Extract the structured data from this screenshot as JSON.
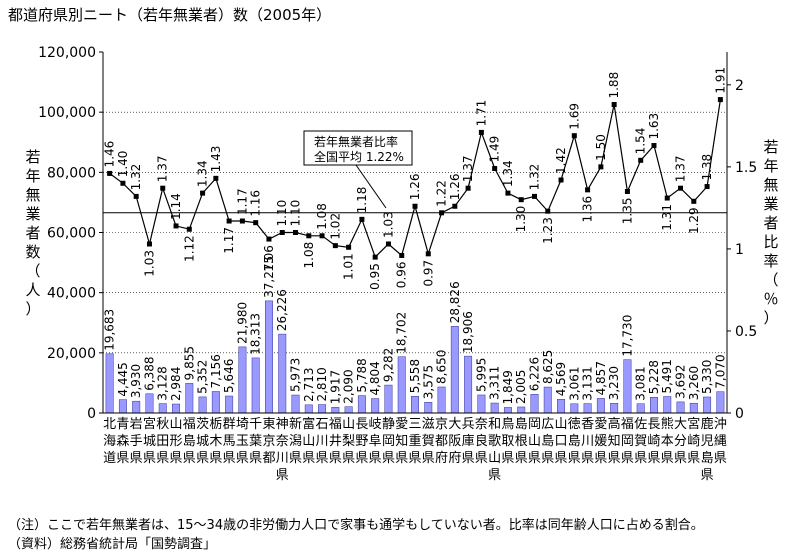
{
  "title": "都道府県別ニート（若年無業者）数（2005年）",
  "notes": [
    "（注）ここで若年無業者は、15～34歳の非労働力人口で家事も通学もしていない者。比率は同年齢人口に占める割合。",
    "（資料）総務省統計局「国勢調査」"
  ],
  "annotation": {
    "line1": "若年無業者比率",
    "line2": "全国平均 1.22%"
  },
  "colors": {
    "bar": "#9999ff",
    "bar_stroke": "#333399",
    "line": "#000000",
    "ref_line": "#000000",
    "grid": "#000000",
    "plot_bg": "#ffffff"
  },
  "chart_data": {
    "type": "bar+line",
    "categories": [
      "北海道",
      "青森県",
      "岩手県",
      "宮城県",
      "秋田県",
      "山形県",
      "福島県",
      "茨城県",
      "栃木県",
      "群馬県",
      "埼玉県",
      "千葉県",
      "東京都",
      "神奈川県",
      "新潟県",
      "富山県",
      "石川県",
      "福井県",
      "山梨県",
      "長野県",
      "岐阜県",
      "静岡県",
      "愛知県",
      "三重県",
      "滋賀県",
      "京都府",
      "大阪府",
      "兵庫県",
      "奈良県",
      "和歌山県",
      "鳥取県",
      "島根県",
      "岡山県",
      "広島県",
      "山口県",
      "徳島県",
      "香川県",
      "愛媛県",
      "高知県",
      "福岡県",
      "佐賀県",
      "長崎県",
      "熊本県",
      "大分県",
      "宮崎県",
      "鹿児島県",
      "沖縄県"
    ],
    "category_labels": [
      [
        "北",
        "海",
        "道",
        ""
      ],
      [
        "青",
        "森",
        "県",
        ""
      ],
      [
        "岩",
        "手",
        "県",
        ""
      ],
      [
        "宮",
        "城",
        "県",
        ""
      ],
      [
        "秋",
        "田",
        "県",
        ""
      ],
      [
        "山",
        "形",
        "県",
        ""
      ],
      [
        "福",
        "島",
        "県",
        ""
      ],
      [
        "茨",
        "城",
        "県",
        ""
      ],
      [
        "栃",
        "木",
        "県",
        ""
      ],
      [
        "群",
        "馬",
        "県",
        ""
      ],
      [
        "埼",
        "玉",
        "県",
        ""
      ],
      [
        "千",
        "葉",
        "県",
        ""
      ],
      [
        "東",
        "京",
        "都",
        ""
      ],
      [
        "神",
        "奈",
        "川",
        "県"
      ],
      [
        "新",
        "潟",
        "県",
        ""
      ],
      [
        "富",
        "山",
        "県",
        ""
      ],
      [
        "石",
        "川",
        "県",
        ""
      ],
      [
        "福",
        "井",
        "県",
        ""
      ],
      [
        "山",
        "梨",
        "県",
        ""
      ],
      [
        "長",
        "野",
        "県",
        ""
      ],
      [
        "岐",
        "阜",
        "県",
        ""
      ],
      [
        "静",
        "岡",
        "県",
        ""
      ],
      [
        "愛",
        "知",
        "県",
        ""
      ],
      [
        "三",
        "重",
        "県",
        ""
      ],
      [
        "滋",
        "賀",
        "県",
        ""
      ],
      [
        "京",
        "都",
        "府",
        ""
      ],
      [
        "大",
        "阪",
        "府",
        ""
      ],
      [
        "兵",
        "庫",
        "県",
        ""
      ],
      [
        "奈",
        "良",
        "県",
        ""
      ],
      [
        "和",
        "歌",
        "山",
        "県"
      ],
      [
        "鳥",
        "取",
        "県",
        ""
      ],
      [
        "島",
        "根",
        "県",
        ""
      ],
      [
        "岡",
        "山",
        "県",
        ""
      ],
      [
        "広",
        "島",
        "県",
        ""
      ],
      [
        "山",
        "口",
        "県",
        ""
      ],
      [
        "徳",
        "島",
        "県",
        ""
      ],
      [
        "香",
        "川",
        "県",
        ""
      ],
      [
        "愛",
        "媛",
        "県",
        ""
      ],
      [
        "高",
        "知",
        "県",
        ""
      ],
      [
        "福",
        "岡",
        "県",
        ""
      ],
      [
        "佐",
        "賀",
        "県",
        ""
      ],
      [
        "長",
        "崎",
        "県",
        ""
      ],
      [
        "熊",
        "本",
        "県",
        ""
      ],
      [
        "大",
        "分",
        "県",
        ""
      ],
      [
        "宮",
        "崎",
        "県",
        ""
      ],
      [
        "鹿",
        "児",
        "島",
        "県"
      ],
      [
        "沖",
        "縄",
        "県",
        ""
      ]
    ],
    "bar_series": {
      "values": [
        19683,
        4445,
        3930,
        6388,
        3128,
        2984,
        9855,
        5352,
        7156,
        5646,
        21980,
        18313,
        37275,
        26226,
        5973,
        2713,
        2810,
        1917,
        2090,
        5788,
        4804,
        9282,
        18702,
        5558,
        3575,
        8650,
        28826,
        18906,
        5995,
        3311,
        1849,
        2005,
        6226,
        8625,
        4569,
        3061,
        3131,
        4857,
        3230,
        17730,
        3081,
        5228,
        5491,
        3692,
        3260,
        5330,
        7070
      ],
      "labels": [
        "19,683",
        "4,445",
        "3,930",
        "6,388",
        "3,128",
        "2,984",
        "9,855",
        "5,352",
        "7,156",
        "5,646",
        "21,980",
        "18,313",
        "37,275",
        "26,226",
        "5,973",
        "2,713",
        "2,810",
        "1,917",
        "2,090",
        "5,788",
        "4,804",
        "9,282",
        "18,702",
        "5,558",
        "3,575",
        "8,650",
        "28,826",
        "18,906",
        "5,995",
        "3,311",
        "1,849",
        "2,005",
        "6,226",
        "8,625",
        "4,569",
        "3,061",
        "3,131",
        "4,857",
        "3,230",
        "17,730",
        "3,081",
        "5,228",
        "5,491",
        "3,692",
        "3,260",
        "5,330",
        "7,070"
      ]
    },
    "line_series": {
      "values": [
        1.46,
        1.4,
        1.32,
        1.03,
        1.37,
        1.14,
        1.12,
        1.34,
        1.43,
        1.17,
        1.17,
        1.16,
        1.06,
        1.1,
        1.1,
        1.08,
        1.08,
        1.02,
        1.01,
        1.18,
        0.95,
        1.03,
        0.96,
        1.26,
        0.97,
        1.22,
        1.26,
        1.37,
        1.71,
        1.49,
        1.34,
        1.3,
        1.32,
        1.23,
        1.42,
        1.69,
        1.36,
        1.5,
        1.88,
        1.35,
        1.54,
        1.63,
        1.31,
        1.37,
        1.29,
        1.38,
        1.91
      ],
      "labels": [
        "1.46",
        "1.40",
        "1.32",
        "1.03",
        "1.37",
        "1.14",
        "1.12",
        "1.34",
        "1.43",
        "1.17",
        "1.17",
        "1.16",
        "1.06",
        "1.10",
        "1.10",
        "1.08",
        "1.08",
        "1.02",
        "1.01",
        "1.18",
        "0.95",
        "1.03",
        "0.96",
        "1.26",
        "0.97",
        "1.22",
        "1.26",
        "1.37",
        "1.71",
        "1.49",
        "1.34",
        "1.30",
        "1.32",
        "1.23",
        "1.42",
        "1.69",
        "1.36",
        "1.50",
        "1.88",
        "1.35",
        "1.54",
        "1.63",
        "1.31",
        "1.37",
        "1.29",
        "1.38",
        "1.91"
      ]
    },
    "reference_value": 1.22,
    "ylabel_left": [
      "若",
      "年",
      "無",
      "業",
      "者",
      "数",
      "（",
      "人",
      "）"
    ],
    "ylabel_right": [
      "若",
      "年",
      "無",
      "業",
      "者",
      "比",
      "率",
      "（",
      "％",
      "）"
    ],
    "yleft_ticks": [
      "0",
      "20,000",
      "40,000",
      "60,000",
      "80,000",
      "100,000",
      "120,000"
    ],
    "yleft_lim": [
      0,
      120000
    ],
    "yright_ticks": [
      "0",
      "0.5",
      "1",
      "1.5",
      "2"
    ],
    "yright_lim": [
      0,
      2.2
    ],
    "grid": true
  }
}
